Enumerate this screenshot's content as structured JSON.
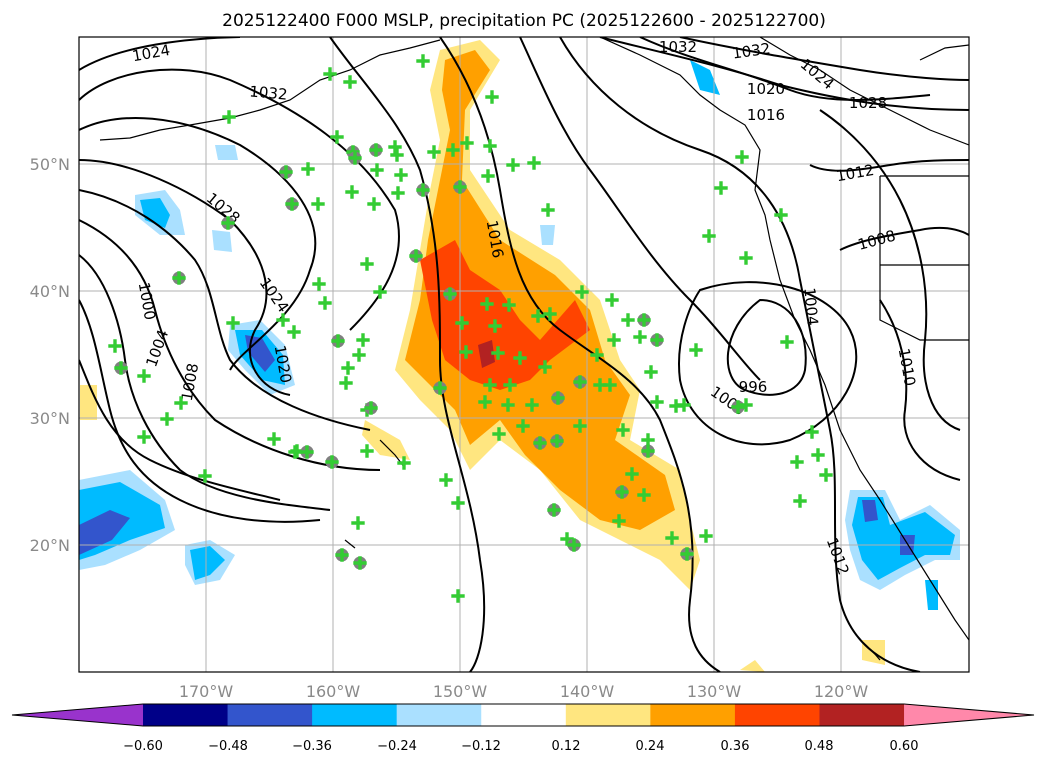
{
  "chart_data": {
    "type": "map-contour",
    "title": "2025122400 F000 MSLP, precipitation PC (2025122600 - 2025122700)",
    "lat_ticks": [
      "50°N",
      "40°N",
      "30°N",
      "20°N"
    ],
    "lon_ticks": [
      "170°W",
      "160°W",
      "150°W",
      "140°W",
      "130°W",
      "120°W"
    ],
    "extent": {
      "lon": [
        -180,
        -110
      ],
      "lat": [
        10,
        60
      ]
    },
    "grid": true,
    "colorbar": {
      "orientation": "horizontal",
      "extend": "both",
      "ticks": [
        "−0.60",
        "−0.48",
        "−0.36",
        "−0.24",
        "−0.12",
        "0.12",
        "0.24",
        "0.36",
        "0.48",
        "0.60"
      ],
      "colors": [
        "#9933cc",
        "#000088",
        "#3355cc",
        "#00bbff",
        "#aae0ff",
        "#ffffff",
        "#ffe680",
        "#ffa000",
        "#ff4400",
        "#b22222",
        "#ff88aa"
      ]
    },
    "isobar_labels": [
      "1024",
      "1032",
      "1032",
      "1032",
      "1028",
      "1020",
      "1016",
      "1028",
      "1024",
      "1012",
      "1016",
      "1008",
      "1024",
      "1020",
      "1000",
      "1004",
      "1008",
      "1004",
      "996",
      "1000",
      "1010",
      "1012"
    ],
    "point_markers": {
      "circle_color": "#808080",
      "plus_color": "#33cc33"
    }
  }
}
